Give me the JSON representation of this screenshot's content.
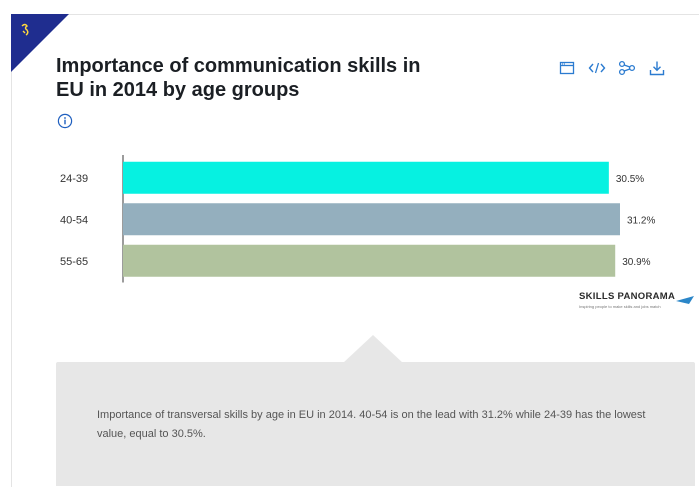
{
  "title_line1": "Importance of communication skills in",
  "title_line2": "EU in 2014 by age groups",
  "toolbar": {
    "items": [
      "window-icon",
      "code-icon",
      "share-icon",
      "download-icon"
    ]
  },
  "brand": {
    "name": "SKILLS PANORAMA",
    "tagline": "Inspiring people to make skills and jobs match"
  },
  "description": "Importance of transversal skills by age in EU in 2014. 40-54 is on the lead with 31.2% while 24-39 has the lowest value, equal to 30.5%.",
  "colors": {
    "accent": "#1f2d8f",
    "bar_24_39": "#06f1e1",
    "bar_40_54": "#94afbe",
    "bar_55_65": "#b1c39e"
  },
  "chart_data": {
    "type": "bar",
    "orientation": "horizontal",
    "categories": [
      "24-39",
      "40-54",
      "55-65"
    ],
    "values": [
      30.5,
      31.2,
      30.9
    ],
    "value_labels": [
      "30.5%",
      "31.2%",
      "30.9%"
    ],
    "xlim": [
      0,
      31.2
    ],
    "grid": false,
    "legend": "none"
  }
}
